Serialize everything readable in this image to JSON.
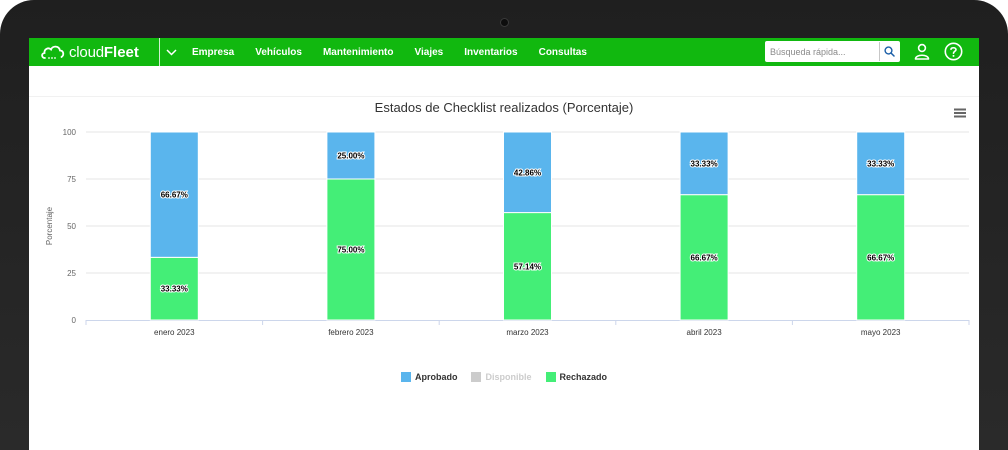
{
  "navbar": {
    "logo_cloud": "cloud",
    "logo_fleet": "Fleet",
    "menu": [
      "Empresa",
      "Vehículos",
      "Mantenimiento",
      "Viajes",
      "Inventarios",
      "Consultas"
    ],
    "search_placeholder": "Búsqueda rápida...",
    "icons": {
      "toggle": "chevron-down-icon",
      "search": "search-icon",
      "user": "user-icon",
      "help": "help-icon"
    }
  },
  "chart_data": {
    "type": "bar",
    "stacked": true,
    "title": "Estados de Checklist realizados (Porcentaje)",
    "xlabel": "",
    "ylabel": "Porcentaje",
    "ylim": [
      0,
      100
    ],
    "yticks": [
      0,
      25,
      50,
      75,
      100
    ],
    "categories": [
      "enero 2023",
      "febrero 2023",
      "marzo 2023",
      "abril 2023",
      "mayo 2023"
    ],
    "series": [
      {
        "name": "Aprobado",
        "color": "#5ab5ed",
        "values": [
          66.67,
          25.0,
          42.86,
          33.33,
          33.33
        ],
        "labels": [
          "66.67%",
          "25.00%",
          "42.86%",
          "33.33%",
          "33.33%"
        ]
      },
      {
        "name": "Disponible",
        "color": "#cccccc",
        "hidden": true,
        "values": [
          0,
          0,
          0,
          0,
          0
        ],
        "labels": []
      },
      {
        "name": "Rechazado",
        "color": "#44ee77",
        "values": [
          33.33,
          75.0,
          57.14,
          66.67,
          66.67
        ],
        "labels": [
          "33.33%",
          "75.00%",
          "57.14%",
          "66.67%",
          "66.67%"
        ]
      }
    ],
    "grid": true,
    "legend_position": "bottom-center",
    "menu_icon": "hamburger-menu-icon"
  }
}
